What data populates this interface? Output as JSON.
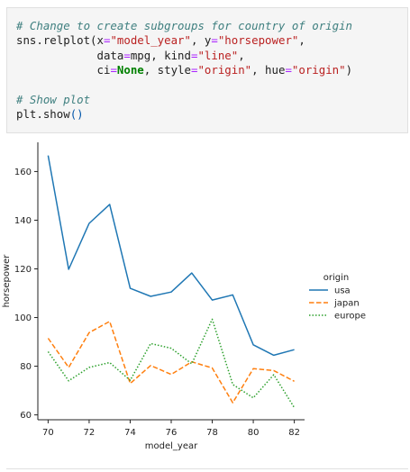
{
  "code": {
    "lines": [
      [
        {
          "t": "# Change to create subgroups for country of origin",
          "c": "cm"
        }
      ],
      [
        {
          "t": "sns.relplot(x",
          "c": ""
        },
        {
          "t": "=",
          "c": "op"
        },
        {
          "t": "\"model_year\"",
          "c": "st"
        },
        {
          "t": ", y",
          "c": ""
        },
        {
          "t": "=",
          "c": "op"
        },
        {
          "t": "\"horsepower\"",
          "c": "st"
        },
        {
          "t": ",",
          "c": ""
        }
      ],
      [
        {
          "t": "            data",
          "c": ""
        },
        {
          "t": "=",
          "c": "op"
        },
        {
          "t": "mpg, kind",
          "c": ""
        },
        {
          "t": "=",
          "c": "op"
        },
        {
          "t": "\"line\"",
          "c": "st"
        },
        {
          "t": ",",
          "c": ""
        }
      ],
      [
        {
          "t": "            ci",
          "c": ""
        },
        {
          "t": "=",
          "c": "op"
        },
        {
          "t": "None",
          "c": "kw"
        },
        {
          "t": ", style",
          "c": ""
        },
        {
          "t": "=",
          "c": "op"
        },
        {
          "t": "\"origin\"",
          "c": "st"
        },
        {
          "t": ", hue",
          "c": ""
        },
        {
          "t": "=",
          "c": "op"
        },
        {
          "t": "\"origin\"",
          "c": "st"
        },
        {
          "t": ")",
          "c": ""
        }
      ],
      [
        {
          "t": "",
          "c": ""
        }
      ],
      [
        {
          "t": "# Show plot",
          "c": "cm"
        }
      ],
      [
        {
          "t": "plt.show",
          "c": ""
        },
        {
          "t": "()",
          "c": "fn"
        }
      ]
    ]
  },
  "chart_data": {
    "type": "line",
    "title": "",
    "xlabel": "model_year",
    "ylabel": "horsepower",
    "xlim": [
      69.5,
      82.5
    ],
    "ylim": [
      58,
      172
    ],
    "xticks": [
      70,
      72,
      74,
      76,
      78,
      80,
      82
    ],
    "yticks": [
      60,
      80,
      100,
      120,
      140,
      160
    ],
    "grid": false,
    "legend": {
      "title": "origin",
      "placement": "center-right"
    },
    "x": [
      70,
      71,
      72,
      73,
      74,
      75,
      76,
      77,
      78,
      79,
      80,
      81,
      82
    ],
    "series": [
      {
        "name": "usa",
        "color": "#1f77b4",
        "dash": "solid",
        "values": [
          166.6,
          119.8,
          138.7,
          146.5,
          112.0,
          108.7,
          110.5,
          118.3,
          107.2,
          109.3,
          88.8,
          84.5,
          86.8
        ]
      },
      {
        "name": "japan",
        "color": "#ff7f0e",
        "dash": "dashed",
        "values": [
          91.5,
          79.5,
          93.8,
          98.4,
          72.9,
          80.3,
          76.6,
          81.8,
          79.3,
          65.0,
          79.0,
          78.2,
          73.8
        ]
      },
      {
        "name": "europe",
        "color": "#2ca02c",
        "dash": "dotted",
        "values": [
          86.0,
          74.0,
          79.5,
          81.5,
          74.2,
          89.3,
          87.4,
          81.0,
          99.3,
          72.5,
          67.0,
          76.5,
          63.0
        ]
      }
    ]
  }
}
